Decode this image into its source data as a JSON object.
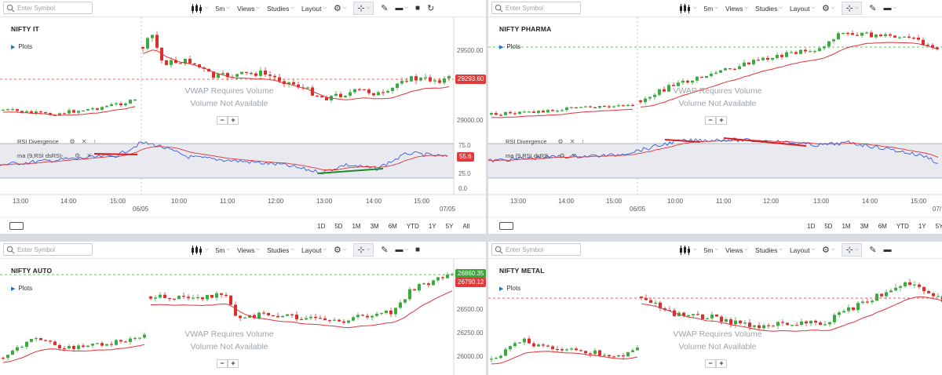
{
  "toolbar": {
    "search_placeholder": "Enter Symbol",
    "interval": "5m",
    "views": "Views",
    "studies": "Studies",
    "layout": "Layout"
  },
  "vwap": {
    "line1": "VWAP Requires Volume",
    "line2": "Volume Not Available"
  },
  "zoom": {
    "minus": "−",
    "plus": "+"
  },
  "plots_label": "Plots",
  "ranges": [
    "1D",
    "5D",
    "1M",
    "3M",
    "6M",
    "YTD",
    "1Y",
    "5Y",
    "All"
  ],
  "panels": {
    "it": {
      "title": "NIFTY IT",
      "y_ticks": [
        "29500.00",
        "29000.00"
      ],
      "price_tag": "29293.60",
      "rsi_label": "RSI Divergence",
      "ma_label": "ma (9,RSI dsRSI-...",
      "rsi_ticks": [
        "75.0",
        "25.0",
        "0.0"
      ],
      "rsi_tag": "55.6",
      "x_ticks": [
        "13:00",
        "14:00",
        "15:00",
        "10:00",
        "11:00",
        "12:00",
        "13:00",
        "14:00",
        "15:00"
      ],
      "date_labels": [
        "06/05",
        "07/05"
      ]
    },
    "pharma": {
      "title": "NIFTY PHARMA",
      "rsi_label": "RSI Divergence",
      "ma_label": "ma (9,RSI dsRS...",
      "x_ticks": [
        "13:00",
        "14:00",
        "15:00",
        "10:00",
        "11:00",
        "12:00",
        "13:00",
        "14:00",
        "15:00"
      ],
      "date_labels": [
        "06/05",
        "07/"
      ]
    },
    "auto": {
      "title": "NIFTY AUTO",
      "y_ticks": [
        "26500.00",
        "26250.00",
        "26000.00"
      ],
      "price_tag_1": "26860.35",
      "price_tag_2": "26790.12"
    },
    "metal": {
      "title": "NIFTY METAL"
    }
  },
  "colors": {
    "up": "#3daa3f",
    "down": "#d9302c",
    "ma": "#e0333a",
    "rsi": "#3a5bd9",
    "rsi_band": "#e8eaf0",
    "price_tag_red": "#e03b3b",
    "price_tag_green": "#3aa23a"
  },
  "icons": {
    "candles": "candle-chart-icon",
    "settings": "gear-icon",
    "crosshair": "crosshair-icon",
    "draw": "pencil-icon",
    "comment": "comment-icon",
    "save": "save-icon",
    "refresh": "refresh-icon"
  }
}
